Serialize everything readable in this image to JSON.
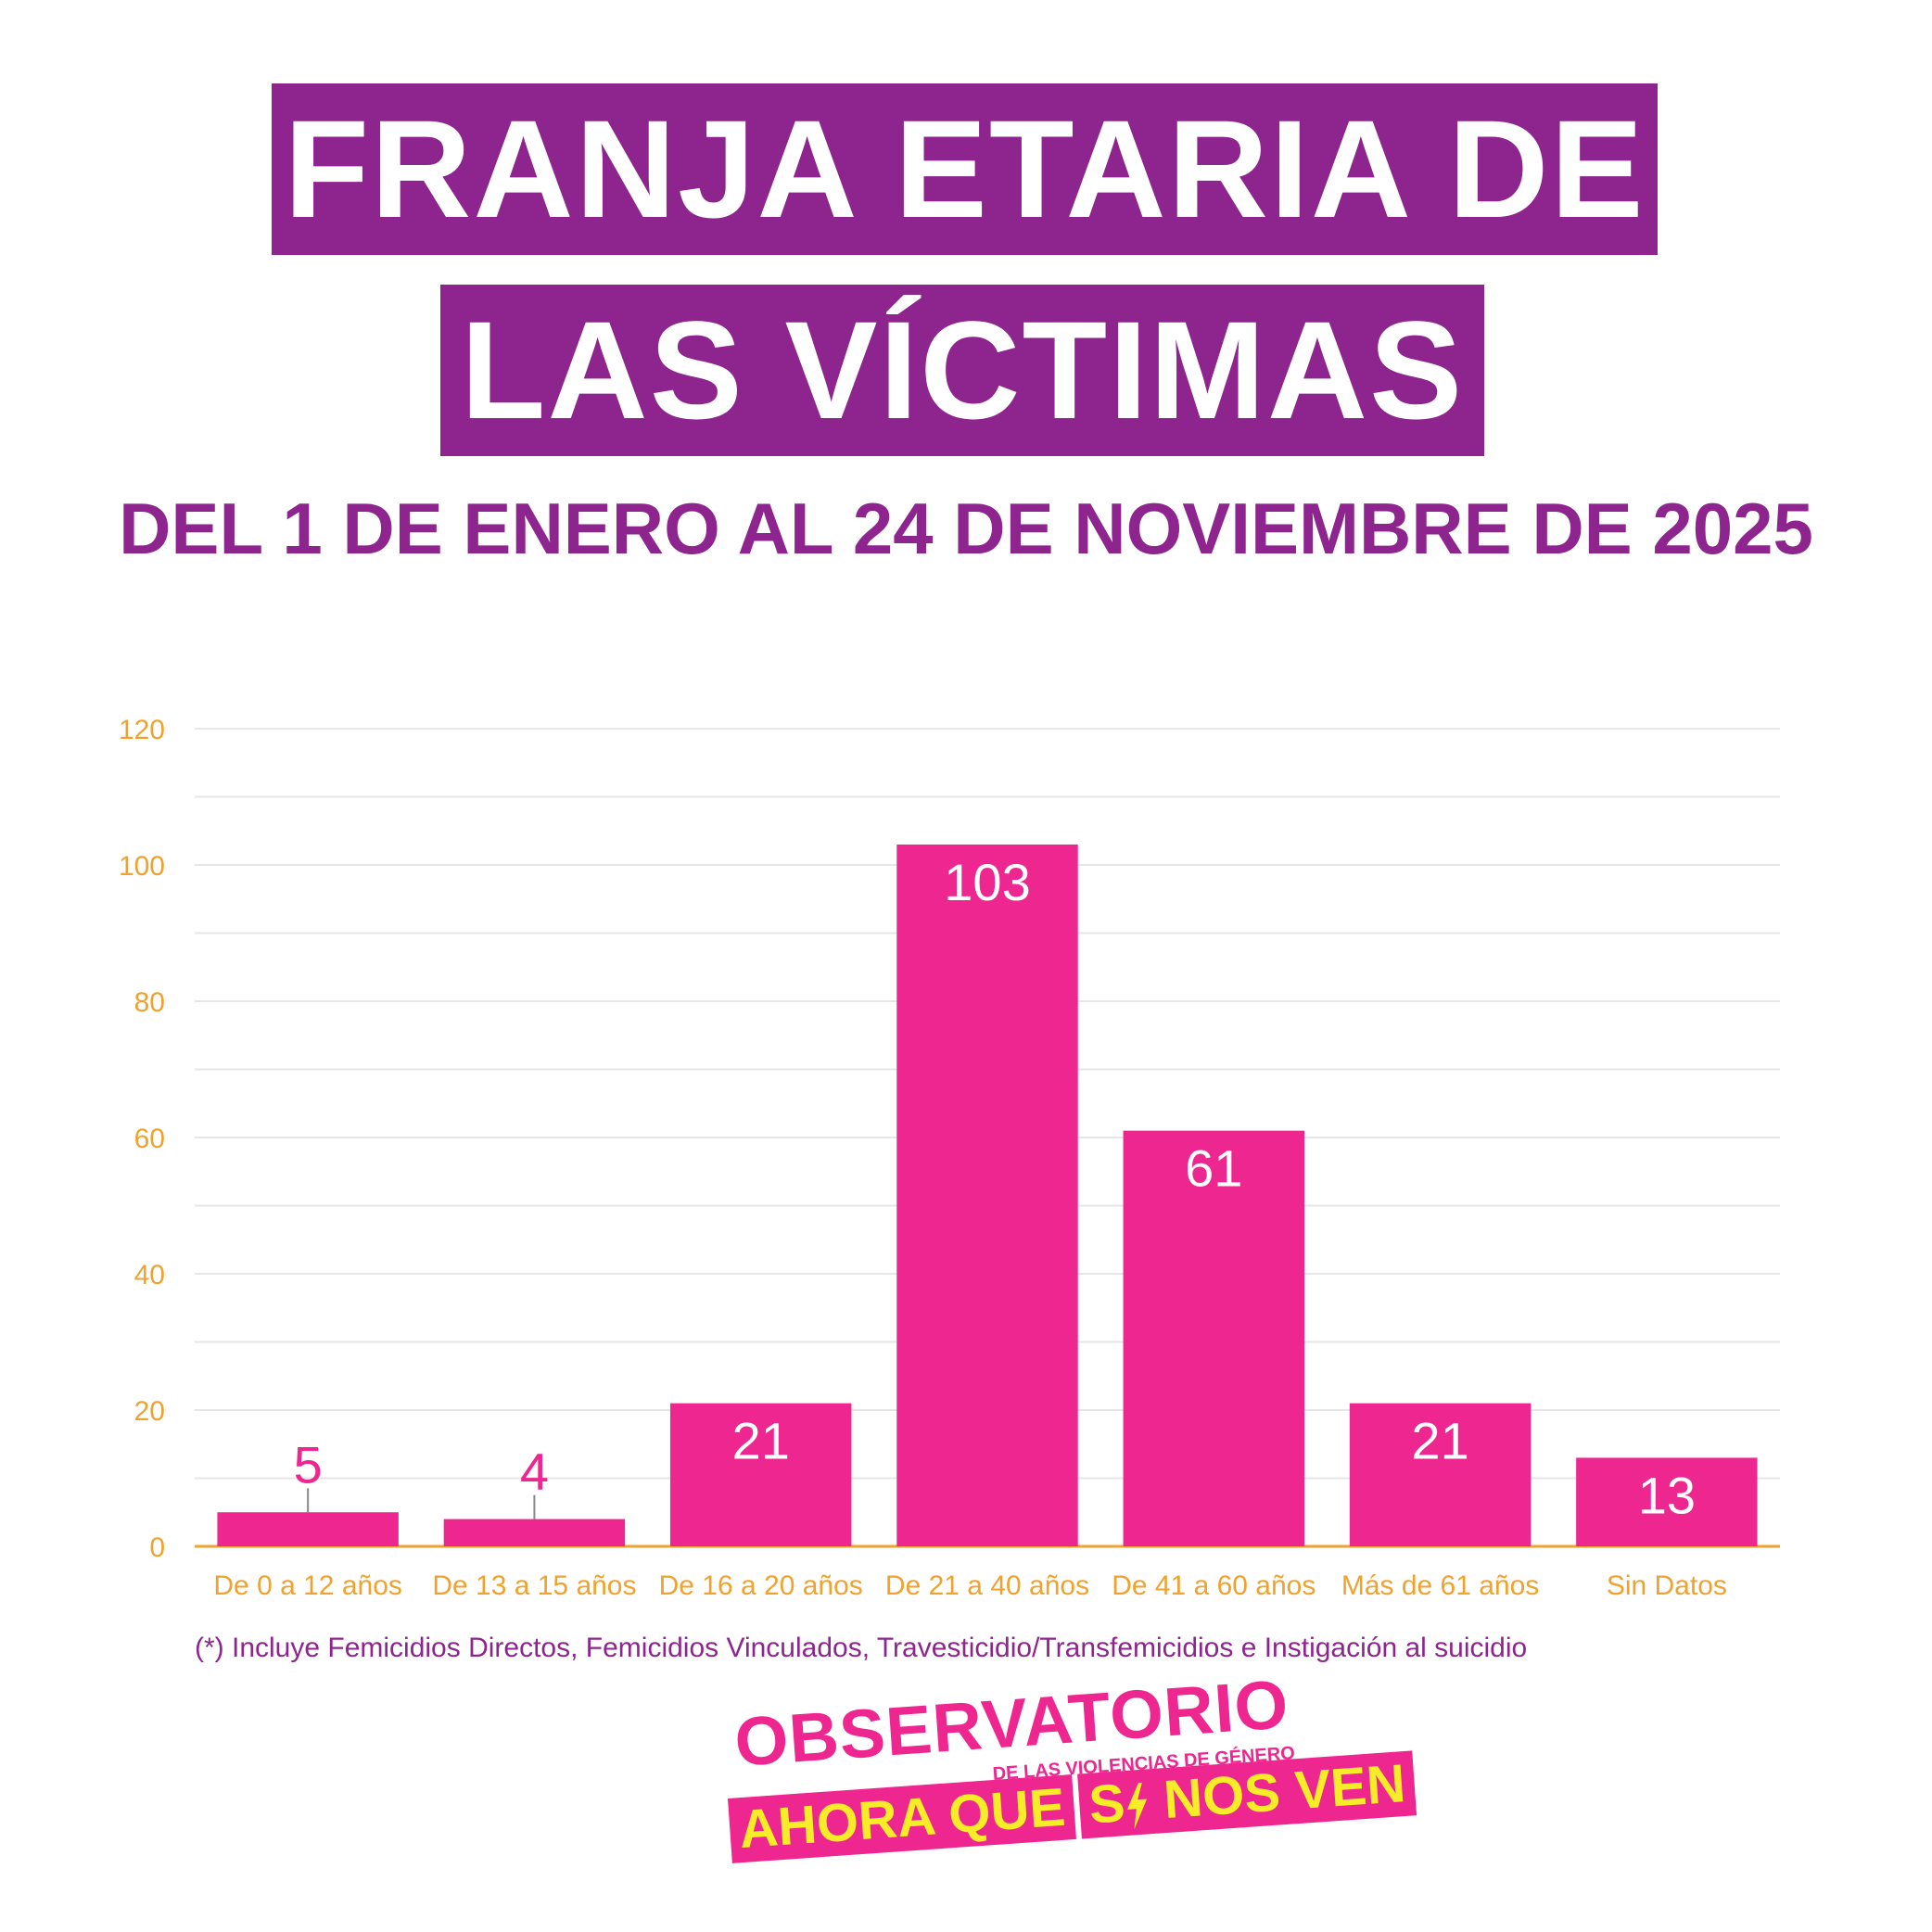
{
  "header": {
    "title_line1": "FRANJA ETARIA DE",
    "title_line2": "LAS VÍCTIMAS",
    "subtitle": "DEL 1 DE ENERO AL 24 DE NOVIEMBRE DE 2025"
  },
  "colors": {
    "purple": "#8e258e",
    "bar": "#ee2690",
    "axis": "#f0a22e",
    "grid": "#e6e6e6",
    "logo_yellow": "#f7ec28"
  },
  "chart_data": {
    "type": "bar",
    "title": "",
    "xlabel": "",
    "ylabel": "",
    "categories": [
      "De 0 a 12 años",
      "De 13 a 15 años",
      "De 16 a 20 años",
      "De 21 a 40 años",
      "De 41 a 60 años",
      "Más de 61 años",
      "Sin Datos"
    ],
    "values": [
      5,
      4,
      21,
      103,
      61,
      21,
      13
    ],
    "ylim": [
      0,
      120
    ],
    "yticks": [
      0,
      20,
      40,
      60,
      80,
      100,
      120
    ],
    "grid": true
  },
  "footnote": "(*) Incluye Femicidios Directos, Femicidios Vinculados,  Travesticidio/Transfemicidios e Instigación al suicidio",
  "logo": {
    "line1": "OBSERVATORIO",
    "line2": "DE LAS VIOLENCIAS DE GÉNERO",
    "line3_part1": "AHORA QUE",
    "line3_part2": "S",
    "line3_part3": "NOS VEN"
  }
}
